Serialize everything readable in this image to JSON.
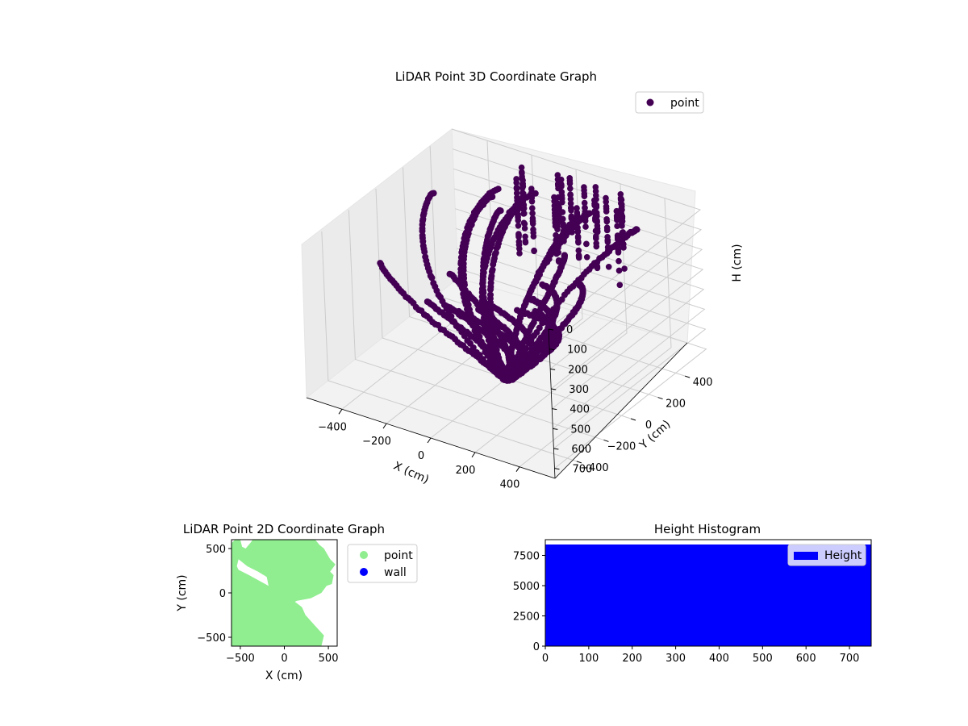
{
  "colors": {
    "point3d": "#440154",
    "point2d": "#90ee90",
    "wall": "#0000ff",
    "histogram": "#0000ff",
    "pane": "#f2f2f2",
    "grid": "#cccccc"
  },
  "chart_data": [
    {
      "type": "scatter",
      "projection": "3d",
      "title": "LiDAR Point 3D Coordinate Graph",
      "xlabel": "X (cm)",
      "ylabel": "Y (cm)",
      "zlabel": "H (cm)",
      "xticks": [
        "−400",
        "−200",
        "0",
        "200",
        "400"
      ],
      "yticks": [
        "−400",
        "−200",
        "0",
        "200",
        "400"
      ],
      "zticks": [
        "0",
        "100",
        "200",
        "300",
        "400",
        "500",
        "600",
        "700"
      ],
      "zaxis_inverted": true,
      "grid": true,
      "legend": {
        "position": "upper-right",
        "entries": [
          "point"
        ]
      },
      "series": [
        {
          "name": "point",
          "color": "#440154"
        }
      ]
    },
    {
      "type": "scatter",
      "title": "LiDAR Point 2D Coordinate Graph",
      "xlabel": "X (cm)",
      "ylabel": "Y (cm)",
      "xticks": [
        "−500",
        "0",
        "500"
      ],
      "yticks": [
        "−500",
        "0",
        "500"
      ],
      "xlim": [
        -600,
        600
      ],
      "ylim": [
        -600,
        600
      ],
      "legend": {
        "position": "outside-right",
        "entries": [
          "point",
          "wall"
        ]
      },
      "series": [
        {
          "name": "point",
          "color": "#90ee90"
        },
        {
          "name": "wall",
          "color": "#0000ff"
        }
      ],
      "filled_region_point": [
        [
          -600,
          560
        ],
        [
          -560,
          600
        ],
        [
          -500,
          600
        ],
        [
          -480,
          520
        ],
        [
          -440,
          500
        ],
        [
          -380,
          570
        ],
        [
          -360,
          600
        ],
        [
          350,
          600
        ],
        [
          400,
          540
        ],
        [
          450,
          500
        ],
        [
          520,
          380
        ],
        [
          580,
          320
        ],
        [
          520,
          240
        ],
        [
          560,
          200
        ],
        [
          540,
          100
        ],
        [
          480,
          80
        ],
        [
          420,
          0
        ],
        [
          300,
          -60
        ],
        [
          140,
          -90
        ],
        [
          120,
          -100
        ],
        [
          200,
          -160
        ],
        [
          240,
          -250
        ],
        [
          340,
          -360
        ],
        [
          450,
          -480
        ],
        [
          420,
          -600
        ],
        [
          -600,
          -600
        ]
      ],
      "empty_region": [
        [
          -520,
          380
        ],
        [
          -420,
          300
        ],
        [
          -300,
          240
        ],
        [
          -200,
          180
        ],
        [
          -180,
          80
        ],
        [
          -400,
          200
        ],
        [
          -520,
          260
        ],
        [
          -540,
          300
        ]
      ]
    },
    {
      "type": "bar",
      "subtype": "histogram",
      "title": "Height Histogram",
      "xlim": [
        0,
        750
      ],
      "ylim": [
        0,
        8800
      ],
      "xticks": [
        "0",
        "100",
        "200",
        "300",
        "400",
        "500",
        "600",
        "700"
      ],
      "yticks": [
        "0",
        "2500",
        "5000",
        "7500"
      ],
      "legend": {
        "position": "top-right",
        "entries": [
          "Height"
        ]
      },
      "series": [
        {
          "name": "Height",
          "color": "#0000ff",
          "bin_range": [
            0,
            750
          ],
          "count": 8400
        }
      ]
    }
  ]
}
